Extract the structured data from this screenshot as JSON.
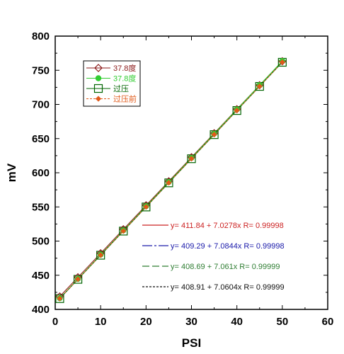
{
  "chart_data": {
    "type": "line",
    "xlabel": "PSI",
    "ylabel": "mV",
    "xlim": [
      0,
      60
    ],
    "ylim": [
      400,
      800
    ],
    "xticks": [
      "0",
      "10",
      "20",
      "30",
      "40",
      "50",
      "60"
    ],
    "yticks": [
      "400",
      "450",
      "500",
      "550",
      "600",
      "650",
      "700",
      "750",
      "800"
    ],
    "grid": false,
    "legend_position": "top-left",
    "x": [
      1,
      5,
      10,
      15,
      20,
      25,
      30,
      35,
      40,
      45,
      50
    ],
    "series": [
      {
        "name": "37.8度",
        "color": "#8b1a1a",
        "marker": "diamond-open",
        "values": [
          418.9,
          447.0,
          482.1,
          517.3,
          552.4,
          587.5,
          622.7,
          657.8,
          693.0,
          728.1,
          763.2
        ]
      },
      {
        "name": "37.8度",
        "color": "#32cd32",
        "marker": "circle-filled",
        "values": [
          416.4,
          444.7,
          480.1,
          515.6,
          551.0,
          586.4,
          621.8,
          657.2,
          692.7,
          728.1,
          763.5
        ]
      },
      {
        "name": "过压",
        "color": "#006400",
        "marker": "square-open",
        "values": [
          415.8,
          444.0,
          479.3,
          514.6,
          549.9,
          585.2,
          620.5,
          655.8,
          691.1,
          726.4,
          761.7
        ]
      },
      {
        "name": "过压前",
        "color": "#e05a1a",
        "marker": "diamond-filled",
        "values": [
          416.0,
          444.2,
          479.5,
          514.8,
          550.1,
          585.4,
          620.7,
          656.0,
          691.3,
          726.6,
          761.9
        ]
      }
    ],
    "fits": [
      {
        "coef": "411.84",
        "slope": "7.0278",
        "r": "0.99998",
        "color": "#cc2222"
      },
      {
        "coef": "409.29",
        "slope": "7.0844",
        "r": "0.99998",
        "color": "#1a1aaa"
      },
      {
        "coef": "408.69",
        "slope": "7.061",
        "r": "0.99999",
        "color": "#2e7d32"
      },
      {
        "coef": "408.91",
        "slope": "7.0604",
        "r": "0.99999",
        "color": "#111111"
      }
    ]
  }
}
